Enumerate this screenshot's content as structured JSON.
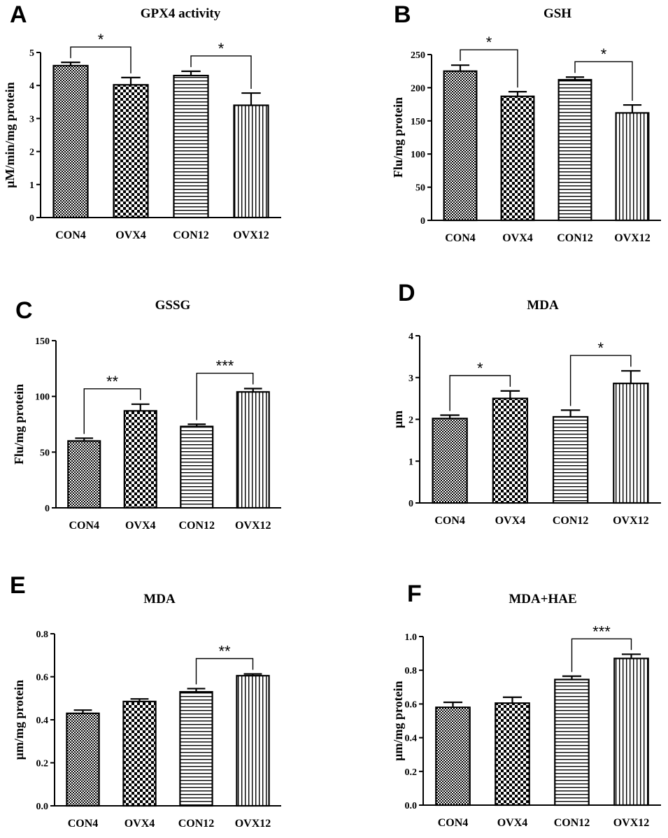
{
  "chart_data": [
    {
      "panel": "A",
      "type": "bar",
      "title": "GPX4 activity",
      "ylabel": "μM/min/mg protein",
      "xlabel": "",
      "categories": [
        "CON4",
        "OVX4",
        "CON12",
        "OVX12"
      ],
      "values": [
        4.6,
        4.02,
        4.3,
        3.4
      ],
      "errors": [
        0.1,
        0.22,
        0.13,
        0.37
      ],
      "patterns": [
        "checker",
        "checker-bold",
        "hlines",
        "vlines"
      ],
      "ylim": [
        0,
        5
      ],
      "yticks": [
        "0",
        "1",
        "2",
        "3",
        "4",
        "5"
      ],
      "significance": [
        {
          "from": 0,
          "to": 1,
          "label": "*"
        },
        {
          "from": 2,
          "to": 3,
          "label": "*"
        }
      ]
    },
    {
      "panel": "B",
      "type": "bar",
      "title": "GSH",
      "ylabel": "Flu/mg protein",
      "xlabel": "",
      "categories": [
        "CON4",
        "OVX4",
        "CON12",
        "OVX12"
      ],
      "values": [
        225,
        187,
        212,
        162
      ],
      "errors": [
        9,
        7,
        4,
        12
      ],
      "patterns": [
        "checker",
        "checker-bold",
        "hlines",
        "vlines"
      ],
      "ylim": [
        0,
        250
      ],
      "yticks": [
        "0",
        "50",
        "100",
        "150",
        "200",
        "250"
      ],
      "significance": [
        {
          "from": 0,
          "to": 1,
          "label": "*"
        },
        {
          "from": 2,
          "to": 3,
          "label": "*"
        }
      ]
    },
    {
      "panel": "C",
      "type": "bar",
      "title": "GSSG",
      "ylabel": "Flu/mg protein",
      "xlabel": "",
      "categories": [
        "CON4",
        "OVX4",
        "CON12",
        "OVX12"
      ],
      "values": [
        60,
        87,
        73,
        104
      ],
      "errors": [
        2.5,
        6,
        2,
        3
      ],
      "patterns": [
        "checker",
        "checker-bold",
        "hlines",
        "vlines"
      ],
      "ylim": [
        0,
        150
      ],
      "yticks": [
        "0",
        "50",
        "100",
        "150"
      ],
      "significance": [
        {
          "from": 0,
          "to": 1,
          "label": "**"
        },
        {
          "from": 2,
          "to": 3,
          "label": "***"
        }
      ]
    },
    {
      "panel": "D",
      "type": "bar",
      "title": "MDA",
      "ylabel": "μm",
      "xlabel": "",
      "categories": [
        "CON4",
        "OVX4",
        "CON12",
        "OVX12"
      ],
      "values": [
        2.02,
        2.5,
        2.06,
        2.86
      ],
      "errors": [
        0.08,
        0.18,
        0.16,
        0.3
      ],
      "patterns": [
        "checker",
        "checker-bold",
        "hlines",
        "vlines"
      ],
      "ylim": [
        0,
        4
      ],
      "yticks": [
        "0",
        "1",
        "2",
        "3",
        "4"
      ],
      "significance": [
        {
          "from": 0,
          "to": 1,
          "label": "*"
        },
        {
          "from": 2,
          "to": 3,
          "label": "*"
        }
      ]
    },
    {
      "panel": "E",
      "type": "bar",
      "title": "MDA",
      "ylabel": "μm/mg protein",
      "xlabel": "",
      "categories": [
        "CON4",
        "OVX4",
        "CON12",
        "OVX12"
      ],
      "values": [
        0.43,
        0.485,
        0.53,
        0.605
      ],
      "errors": [
        0.015,
        0.012,
        0.015,
        0.008
      ],
      "patterns": [
        "checker",
        "checker-bold",
        "hlines",
        "vlines"
      ],
      "ylim": [
        0,
        0.8
      ],
      "yticks": [
        "0.0",
        "0.2",
        "0.4",
        "0.6",
        "0.8"
      ],
      "significance": [
        {
          "from": 2,
          "to": 3,
          "label": "**"
        }
      ]
    },
    {
      "panel": "F",
      "type": "bar",
      "title": "MDA+HAE",
      "ylabel": "μm/mg protein",
      "xlabel": "",
      "categories": [
        "CON4",
        "OVX4",
        "CON12",
        "OVX12"
      ],
      "values": [
        0.58,
        0.605,
        0.745,
        0.87
      ],
      "errors": [
        0.03,
        0.035,
        0.02,
        0.025
      ],
      "patterns": [
        "checker",
        "checker-bold",
        "hlines",
        "vlines"
      ],
      "ylim": [
        0,
        1.0
      ],
      "yticks": [
        "0.0",
        "0.2",
        "0.4",
        "0.6",
        "0.8",
        "1.0"
      ],
      "significance": [
        {
          "from": 2,
          "to": 3,
          "label": "***"
        }
      ]
    }
  ]
}
